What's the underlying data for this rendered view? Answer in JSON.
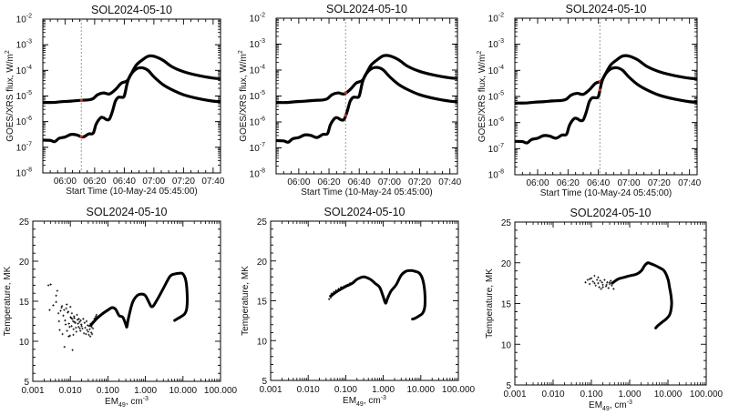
{
  "chart_data": [
    {
      "type": "line",
      "panel": "top-left",
      "title": "SOL2024-05-10",
      "xlabel": "Start Time (10-May-24 05:45:00)",
      "ylabel": "GOES/XRS flux, W/m",
      "ylabel_sup": "2",
      "yscale": "log",
      "ylim_exp": [
        -8,
        -2
      ],
      "ytick_exps": [
        -8,
        -7,
        -6,
        -5,
        -4,
        -3,
        -2
      ],
      "ytick_base": "10",
      "xlim_min": [
        45,
        165
      ],
      "xtick_labels": [
        "06:00",
        "06:20",
        "06:40",
        "07:00",
        "07:20",
        "07:40"
      ],
      "xtick_min": [
        60,
        80,
        100,
        120,
        140,
        160
      ],
      "marker_time_min": 71,
      "series": [
        {
          "name": "long channel",
          "t": [
            45,
            52,
            58,
            64,
            70,
            76,
            79,
            82,
            86,
            90,
            94,
            98,
            102,
            105,
            108,
            112,
            116,
            120,
            126,
            132,
            140,
            150,
            160,
            165
          ],
          "log_flux": [
            -5.25,
            -5.25,
            -5.22,
            -5.2,
            -5.17,
            -5.15,
            -5.1,
            -4.95,
            -4.88,
            -4.92,
            -4.75,
            -4.5,
            -4.4,
            -4.1,
            -3.8,
            -3.6,
            -3.45,
            -3.45,
            -3.6,
            -3.85,
            -4.05,
            -4.2,
            -4.3,
            -4.32
          ]
        },
        {
          "name": "short channel",
          "t": [
            45,
            50,
            53,
            56,
            60,
            64,
            68,
            72,
            76,
            79,
            81,
            84,
            86,
            88,
            90,
            92,
            94,
            96,
            98,
            100,
            102,
            104,
            108,
            112,
            116,
            120,
            126,
            132,
            140,
            150,
            160,
            165
          ],
          "log_flux": [
            -6.72,
            -6.73,
            -6.78,
            -6.65,
            -6.6,
            -6.5,
            -6.52,
            -6.6,
            -6.48,
            -6.45,
            -6.1,
            -5.85,
            -5.85,
            -5.92,
            -5.9,
            -5.6,
            -5.2,
            -5.05,
            -5.05,
            -5.0,
            -4.5,
            -4.2,
            -3.95,
            -3.9,
            -4.0,
            -4.25,
            -4.55,
            -4.75,
            -4.95,
            -5.1,
            -5.2,
            -5.22
          ]
        }
      ]
    },
    {
      "type": "line",
      "panel": "top-middle",
      "title": "SOL2024-05-10",
      "xlabel": "Start Time (10-May-24 05:45:00)",
      "ylabel": "GOES/XRS flux, W/m",
      "ylabel_sup": "2",
      "yscale": "log",
      "ylim_exp": [
        -8,
        -2
      ],
      "ytick_exps": [
        -8,
        -7,
        -6,
        -5,
        -4,
        -3,
        -2
      ],
      "ytick_base": "10",
      "xlim_min": [
        45,
        165
      ],
      "xtick_labels": [
        "06:00",
        "06:20",
        "06:40",
        "07:00",
        "07:20",
        "07:40"
      ],
      "xtick_min": [
        60,
        80,
        100,
        120,
        140,
        160
      ],
      "marker_time_min": 91,
      "series": [
        {
          "name": "long channel",
          "t": [
            45,
            52,
            58,
            64,
            70,
            76,
            79,
            82,
            86,
            90,
            94,
            98,
            102,
            105,
            108,
            112,
            116,
            120,
            126,
            132,
            140,
            150,
            160,
            165
          ],
          "log_flux": [
            -5.25,
            -5.25,
            -5.22,
            -5.2,
            -5.17,
            -5.15,
            -5.1,
            -4.95,
            -4.88,
            -4.92,
            -4.75,
            -4.5,
            -4.4,
            -4.1,
            -3.8,
            -3.6,
            -3.45,
            -3.45,
            -3.6,
            -3.85,
            -4.05,
            -4.2,
            -4.3,
            -4.32
          ]
        },
        {
          "name": "short channel",
          "t": [
            45,
            50,
            53,
            56,
            60,
            64,
            68,
            72,
            76,
            79,
            81,
            84,
            86,
            88,
            90,
            92,
            94,
            96,
            98,
            100,
            102,
            104,
            108,
            112,
            116,
            120,
            126,
            132,
            140,
            150,
            160,
            165
          ],
          "log_flux": [
            -6.72,
            -6.73,
            -6.78,
            -6.65,
            -6.6,
            -6.5,
            -6.52,
            -6.6,
            -6.48,
            -6.45,
            -6.1,
            -5.85,
            -5.85,
            -5.92,
            -5.9,
            -5.6,
            -5.2,
            -5.05,
            -5.05,
            -5.0,
            -4.5,
            -4.2,
            -3.95,
            -3.9,
            -4.0,
            -4.25,
            -4.55,
            -4.75,
            -4.95,
            -5.1,
            -5.2,
            -5.22
          ]
        }
      ]
    },
    {
      "type": "line",
      "panel": "top-right",
      "title": "SOL2024-05-10",
      "xlabel": "Start Time (10-May-24 05:45:00)",
      "ylabel": "GOES/XRS flux, W/m",
      "ylabel_sup": "2",
      "yscale": "log",
      "ylim_exp": [
        -8,
        -2
      ],
      "ytick_exps": [
        -8,
        -7,
        -6,
        -5,
        -4,
        -3,
        -2
      ],
      "ytick_base": "10",
      "xlim_min": [
        45,
        165
      ],
      "xtick_labels": [
        "06:00",
        "06:20",
        "06:40",
        "07:00",
        "07:20",
        "07:40"
      ],
      "xtick_min": [
        60,
        80,
        100,
        120,
        140,
        160
      ],
      "marker_time_min": 101,
      "series": [
        {
          "name": "long channel",
          "t": [
            45,
            52,
            58,
            64,
            70,
            76,
            79,
            82,
            86,
            90,
            94,
            98,
            102,
            105,
            108,
            112,
            116,
            120,
            126,
            132,
            140,
            150,
            160,
            165
          ],
          "log_flux": [
            -5.25,
            -5.25,
            -5.22,
            -5.2,
            -5.17,
            -5.15,
            -5.1,
            -4.95,
            -4.88,
            -4.92,
            -4.75,
            -4.5,
            -4.4,
            -4.1,
            -3.8,
            -3.6,
            -3.45,
            -3.45,
            -3.6,
            -3.85,
            -4.05,
            -4.2,
            -4.3,
            -4.32
          ]
        },
        {
          "name": "short channel",
          "t": [
            45,
            50,
            53,
            56,
            60,
            64,
            68,
            72,
            76,
            79,
            81,
            84,
            86,
            88,
            90,
            92,
            94,
            96,
            98,
            100,
            102,
            104,
            108,
            112,
            116,
            120,
            126,
            132,
            140,
            150,
            160,
            165
          ],
          "log_flux": [
            -6.72,
            -6.73,
            -6.78,
            -6.65,
            -6.6,
            -6.5,
            -6.52,
            -6.6,
            -6.48,
            -6.45,
            -6.1,
            -5.85,
            -5.85,
            -5.92,
            -5.9,
            -5.6,
            -5.2,
            -5.05,
            -5.05,
            -5.0,
            -4.5,
            -4.2,
            -3.95,
            -3.9,
            -4.0,
            -4.25,
            -4.55,
            -4.75,
            -4.95,
            -5.1,
            -5.2,
            -5.22
          ]
        }
      ]
    },
    {
      "type": "scatter",
      "panel": "bottom-left",
      "title": "SOL2024-05-10",
      "xlabel": "EM",
      "xlabel_sub": "49",
      "xlabel_unit": ", cm",
      "xlabel_sup": "-3",
      "ylabel": "Temperature, MK",
      "xscale": "log",
      "xlim": [
        0.001,
        100
      ],
      "ylim": [
        5,
        25
      ],
      "xtick_labels": [
        "0.001",
        "0.010",
        "0.100",
        "1.000",
        "10.000",
        "100.000"
      ],
      "xtick_values": [
        0.001,
        0.01,
        0.1,
        1,
        10,
        100
      ],
      "ytick_labels": [
        "5",
        "10",
        "15",
        "20",
        "25"
      ],
      "ytick_values": [
        5,
        10,
        15,
        20,
        25
      ],
      "scatter_points": {
        "em": [
          0.0026,
          0.003,
          0.0028,
          0.0035,
          0.0042,
          0.0045,
          0.005,
          0.0055,
          0.006,
          0.0065,
          0.007,
          0.0075,
          0.008,
          0.0085,
          0.009,
          0.0095,
          0.01,
          0.0105,
          0.011,
          0.0115,
          0.012,
          0.0125,
          0.013,
          0.014,
          0.015,
          0.016,
          0.017,
          0.018,
          0.019,
          0.02,
          0.0042,
          0.0048,
          0.0052,
          0.0058,
          0.0062,
          0.0068,
          0.0072,
          0.0078,
          0.0082,
          0.0088,
          0.0092,
          0.0098,
          0.0102,
          0.0108,
          0.0112,
          0.0118,
          0.0122,
          0.0128,
          0.0135,
          0.0145,
          0.0155,
          0.0165,
          0.0175,
          0.0185,
          0.0195,
          0.021,
          0.022,
          0.023,
          0.024,
          0.025,
          0.026,
          0.027,
          0.028,
          0.029,
          0.03,
          0.031,
          0.032,
          0.033,
          0.034,
          0.035,
          0.036,
          0.037,
          0.038,
          0.039,
          0.04,
          0.042,
          0.044,
          0.046,
          0.048,
          0.05
        ],
        "temp": [
          17,
          17.1,
          13.9,
          14.5,
          15.7,
          16.3,
          12.5,
          13.8,
          14.4,
          13.2,
          9.3,
          12.1,
          14.6,
          13.6,
          10.6,
          11.8,
          14.3,
          12.9,
          13.5,
          8.9,
          10.8,
          13.1,
          12.4,
          11.7,
          13.3,
          12.2,
          12.8,
          11.6,
          12.6,
          11.9,
          14.9,
          13.5,
          11.4,
          14.2,
          10.9,
          13.9,
          12.6,
          14.1,
          11.3,
          13.7,
          12.2,
          10.7,
          13.0,
          11.9,
          12.8,
          12.5,
          11.5,
          12.9,
          12.3,
          11.2,
          12.7,
          11.8,
          12.4,
          11.3,
          12.1,
          11.6,
          12.8,
          11.0,
          12.3,
          11.7,
          10.9,
          12.5,
          11.4,
          12.0,
          11.2,
          10.8,
          11.9,
          11.5,
          10.6,
          12.2,
          11.1,
          11.8,
          10.9,
          12.4,
          11.6,
          12.5,
          12.8,
          12.9,
          13.1,
          13.3
        ]
      },
      "curve": {
        "em": [
          0.035,
          0.05,
          0.07,
          0.1,
          0.13,
          0.16,
          0.2,
          0.25,
          0.3,
          0.32,
          0.35,
          0.45,
          0.6,
          0.8,
          1.0,
          1.2,
          1.5,
          2.0,
          3.0,
          4.5,
          6,
          8,
          10,
          12,
          13,
          12.5,
          11,
          9,
          7,
          6
        ],
        "temp": [
          12.0,
          12.8,
          13.4,
          13.9,
          14.2,
          14.0,
          13.2,
          13.0,
          12.1,
          11.8,
          12.8,
          14.8,
          15.7,
          15.9,
          15.7,
          15.0,
          14.3,
          15.1,
          16.6,
          18.1,
          18.4,
          18.5,
          18.4,
          17.5,
          15.5,
          14.0,
          13.4,
          13.1,
          12.8,
          12.6
        ]
      }
    },
    {
      "type": "scatter",
      "panel": "bottom-middle",
      "title": "SOL2024-05-10",
      "xlabel": "EM",
      "xlabel_sub": "49",
      "xlabel_unit": ", cm",
      "xlabel_sup": "-3",
      "ylabel": "Temperature, MK",
      "xscale": "log",
      "xlim": [
        0.001,
        100
      ],
      "ylim": [
        5,
        25
      ],
      "xtick_labels": [
        "0.001",
        "0.010",
        "0.100",
        "1.000",
        "10.000",
        "100.000"
      ],
      "xtick_values": [
        0.001,
        0.01,
        0.1,
        1,
        10,
        100
      ],
      "ytick_labels": [
        "5",
        "10",
        "15",
        "20",
        "25"
      ],
      "ytick_values": [
        5,
        10,
        15,
        20,
        25
      ],
      "scatter_points": {
        "em": [
          0.036,
          0.038,
          0.04,
          0.042,
          0.045,
          0.048,
          0.05,
          0.055,
          0.06,
          0.065,
          0.07,
          0.075,
          0.08,
          0.09,
          0.1,
          0.11,
          0.12,
          0.13
        ],
        "temp": [
          15.2,
          15.6,
          15.4,
          15.9,
          15.7,
          16.1,
          16.0,
          16.3,
          16.2,
          16.5,
          16.4,
          16.7,
          16.6,
          16.8,
          16.9,
          17.0,
          16.9,
          17.2
        ]
      },
      "curve": {
        "em": [
          0.04,
          0.06,
          0.1,
          0.15,
          0.2,
          0.3,
          0.45,
          0.6,
          0.8,
          1.0,
          1.15,
          1.3,
          1.6,
          2.2,
          3.0,
          4.0,
          5.5,
          7,
          9,
          11,
          12.5,
          13,
          12.5,
          11,
          9,
          7,
          6
        ],
        "temp": [
          15.6,
          16.2,
          16.8,
          17.2,
          17.7,
          18.0,
          17.7,
          17.2,
          16.7,
          15.5,
          14.7,
          15.3,
          16.2,
          17.0,
          18.2,
          18.7,
          18.8,
          18.7,
          18.5,
          17.8,
          16.5,
          15.0,
          14.0,
          13.4,
          13.1,
          12.8,
          12.7
        ]
      }
    },
    {
      "type": "scatter",
      "panel": "bottom-right",
      "title": "SOL2024-05-10",
      "xlabel": "EM",
      "xlabel_sub": "49",
      "xlabel_unit": ", cm",
      "xlabel_sup": "-3",
      "ylabel": "Temperature, MK",
      "xscale": "log",
      "xlim": [
        0.001,
        100
      ],
      "ylim": [
        5,
        25
      ],
      "xtick_labels": [
        "0.001",
        "0.010",
        "0.100",
        "1.000",
        "10.000",
        "100.000"
      ],
      "xtick_values": [
        0.001,
        0.01,
        0.1,
        1,
        10,
        100
      ],
      "ytick_labels": [
        "5",
        "10",
        "15",
        "20",
        "25"
      ],
      "ytick_values": [
        5,
        10,
        15,
        20,
        25
      ],
      "scatter_points": {
        "em": [
          0.07,
          0.08,
          0.09,
          0.1,
          0.11,
          0.12,
          0.13,
          0.14,
          0.15,
          0.16,
          0.17,
          0.18,
          0.19,
          0.2,
          0.22,
          0.24,
          0.26,
          0.28,
          0.3,
          0.32,
          0.34,
          0.36,
          0.38,
          0.4,
          0.09,
          0.12,
          0.15,
          0.2,
          0.25,
          0.3
        ],
        "temp": [
          17.6,
          17.9,
          17.4,
          18.1,
          17.7,
          18.4,
          17.2,
          17.9,
          17.5,
          17.0,
          17.8,
          16.8,
          17.6,
          17.3,
          17.9,
          17.1,
          17.6,
          16.9,
          17.4,
          17.8,
          17.2,
          17.5,
          16.8,
          17.7,
          18.0,
          17.5,
          18.2,
          17.0,
          17.3,
          17.6
        ]
      },
      "curve": {
        "em": [
          0.35,
          0.5,
          0.7,
          1.0,
          1.5,
          2.0,
          2.5,
          3.0,
          3.5,
          4.5,
          6,
          8,
          10,
          11,
          12,
          12.5,
          12,
          11,
          9,
          7,
          5.5,
          4.8
        ],
        "temp": [
          17.5,
          18.0,
          18.2,
          18.4,
          18.6,
          19.0,
          19.7,
          20.0,
          19.9,
          19.7,
          19.4,
          19.0,
          18.0,
          17.0,
          16.0,
          15.0,
          14.2,
          13.6,
          13.1,
          12.7,
          12.3,
          12.0
        ]
      }
    }
  ],
  "colors": {
    "line": "#000000",
    "marker_line": "#9a9a9a",
    "marker_dot": "#c0392b"
  }
}
